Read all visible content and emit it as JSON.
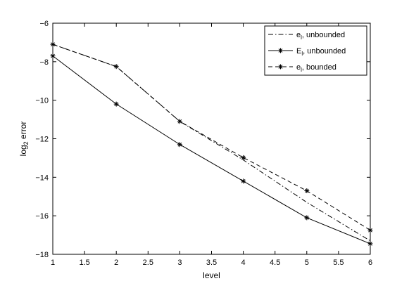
{
  "chart_data": {
    "type": "line",
    "xlabel": "level",
    "ylabel": {
      "base": "log",
      "sub": "2",
      "rest": " error"
    },
    "xlim": [
      1,
      6
    ],
    "ylim": [
      -18,
      -6
    ],
    "xticks": [
      1,
      1.5,
      2,
      2.5,
      3,
      3.5,
      4,
      4.5,
      5,
      5.5,
      6
    ],
    "yticks": [
      -6,
      -8,
      -10,
      -12,
      -14,
      -16,
      -18
    ],
    "grid": false,
    "legend_position": "top-right",
    "x": [
      1,
      2,
      3,
      4,
      5,
      6
    ],
    "series": [
      {
        "name": {
          "base": "e",
          "sub": "l",
          "rest": ", unbounded"
        },
        "line_style": "dash-dot",
        "marker": "none",
        "values": [
          -7.1,
          -8.25,
          -11.1,
          -13.1,
          -15.3,
          -17.3
        ]
      },
      {
        "name": {
          "base": "E",
          "sub": "l",
          "rest": ", unbounded"
        },
        "line_style": "solid",
        "marker": "asterisk",
        "values": [
          -7.7,
          -10.2,
          -12.3,
          -14.2,
          -16.1,
          -17.45
        ]
      },
      {
        "name": {
          "base": "e",
          "sub": "l",
          "rest": ", bounded"
        },
        "line_style": "dashed",
        "marker": "asterisk",
        "values": [
          -7.1,
          -8.25,
          -11.1,
          -12.98,
          -14.7,
          -16.75
        ]
      }
    ]
  }
}
